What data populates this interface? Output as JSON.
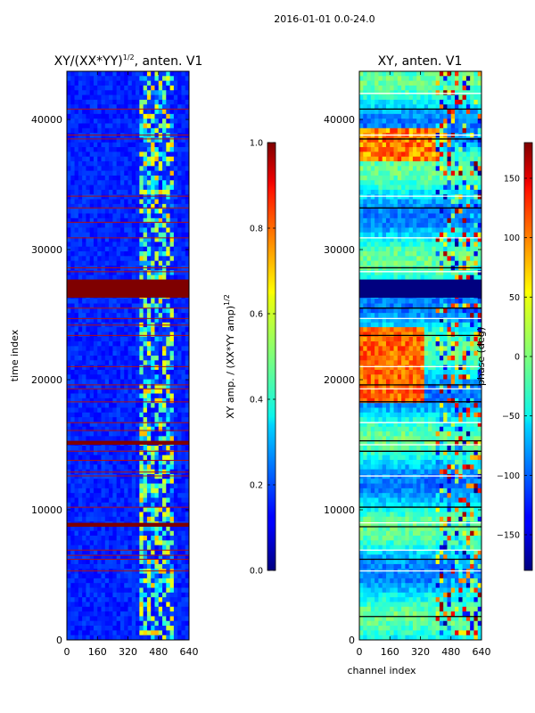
{
  "figure": {
    "suptitle": "2016-01-01 0.0-24.0"
  },
  "chart_data": [
    {
      "type": "heatmap",
      "title_main": "XY/(XX*YY)",
      "title_exp": "1/2",
      "title_rest": ", anten. V1",
      "xlabel": "",
      "ylabel": "time index",
      "xlim": [
        0,
        640
      ],
      "ylim": [
        0,
        43700
      ],
      "xticks": [
        0,
        160,
        320,
        480,
        640
      ],
      "yticks": [
        0,
        10000,
        20000,
        30000,
        40000
      ],
      "xtick_labels": [
        "0",
        "160",
        "320",
        "480",
        "640"
      ],
      "ytick_labels": [
        "0",
        "10000",
        "20000",
        "30000",
        "40000"
      ],
      "colormap": "jet",
      "flagged_bands": [
        [
          26300,
          27700
        ],
        [
          15000,
          15300
        ],
        [
          8700,
          9000
        ]
      ],
      "flagged_lines": [
        5300,
        6200,
        6500,
        6900,
        10200,
        12600,
        12900,
        13800,
        14500,
        16100,
        16700,
        18300,
        19300,
        19600,
        21000,
        23400,
        24200,
        24700,
        25500,
        28300,
        28600,
        30900,
        32100,
        33200,
        34100,
        38500,
        38800,
        40800
      ],
      "colorbar": {
        "label_main": "XY amp. / (XX*YY amp)",
        "label_exp": "1/2",
        "range": [
          0.0,
          1.0
        ],
        "ticks": [
          0.0,
          0.2,
          0.4,
          0.6,
          0.8,
          1.0
        ],
        "tick_labels": [
          "0.0",
          "0.2",
          "0.4",
          "0.6",
          "0.8",
          "1.0"
        ]
      }
    },
    {
      "type": "heatmap",
      "title": "XY, anten. V1",
      "xlabel": "channel index",
      "ylabel": "",
      "xlim": [
        0,
        640
      ],
      "ylim": [
        0,
        43700
      ],
      "xticks": [
        0,
        160,
        320,
        480,
        640
      ],
      "yticks": [
        0,
        10000,
        20000,
        30000,
        40000
      ],
      "xtick_labels": [
        "0",
        "160",
        "320",
        "480",
        "640"
      ],
      "ytick_labels": [
        "0",
        "10000",
        "20000",
        "30000",
        "40000"
      ],
      "colormap": "jet",
      "flagged_bands": [
        [
          26300,
          27700
        ]
      ],
      "flagged_lines": [
        1800,
        5300,
        6200,
        6900,
        8700,
        9000,
        10200,
        12600,
        14500,
        15000,
        15300,
        16700,
        18300,
        19300,
        19600,
        21000,
        23400,
        24700,
        25500,
        28300,
        28600,
        30900,
        33200,
        34100,
        38500,
        38800,
        40800,
        42000
      ],
      "colorbar": {
        "label": "phase (deg)",
        "range": [
          -180,
          180
        ],
        "ticks": [
          150,
          100,
          50,
          0,
          -50,
          -100,
          -150
        ],
        "tick_labels": [
          "150",
          "100",
          "50",
          "0",
          "−50",
          "−100",
          "−150"
        ]
      }
    }
  ]
}
